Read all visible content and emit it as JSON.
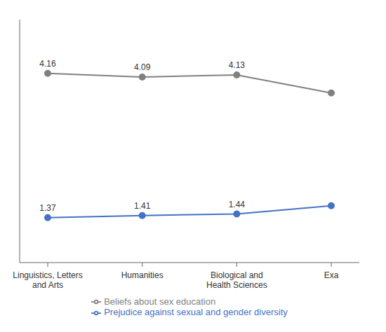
{
  "chart_data": {
    "type": "line",
    "categories": [
      "Linguistics, Letters\nand Arts",
      "Humanities",
      "Biological and\nHealth Sciences",
      "Exa"
    ],
    "series": [
      {
        "name": "Prejudice against sexual and gender diversity",
        "color": "#4472C4",
        "marker": "circle",
        "values": [
          1.37,
          1.41,
          1.44,
          1.6
        ],
        "value_labels": [
          "1.37",
          "1.41",
          "1.44",
          null
        ]
      },
      {
        "name": "Beliefs about sex education",
        "color": "#808080",
        "marker": "circle",
        "values": [
          4.16,
          4.09,
          4.13,
          3.78
        ],
        "value_labels": [
          "4.16",
          "4.09",
          "4.13",
          null
        ]
      }
    ],
    "ylim": [
      0.5,
      5.2
    ],
    "grid": false,
    "data_labels": true,
    "tick_labels": "x"
  }
}
